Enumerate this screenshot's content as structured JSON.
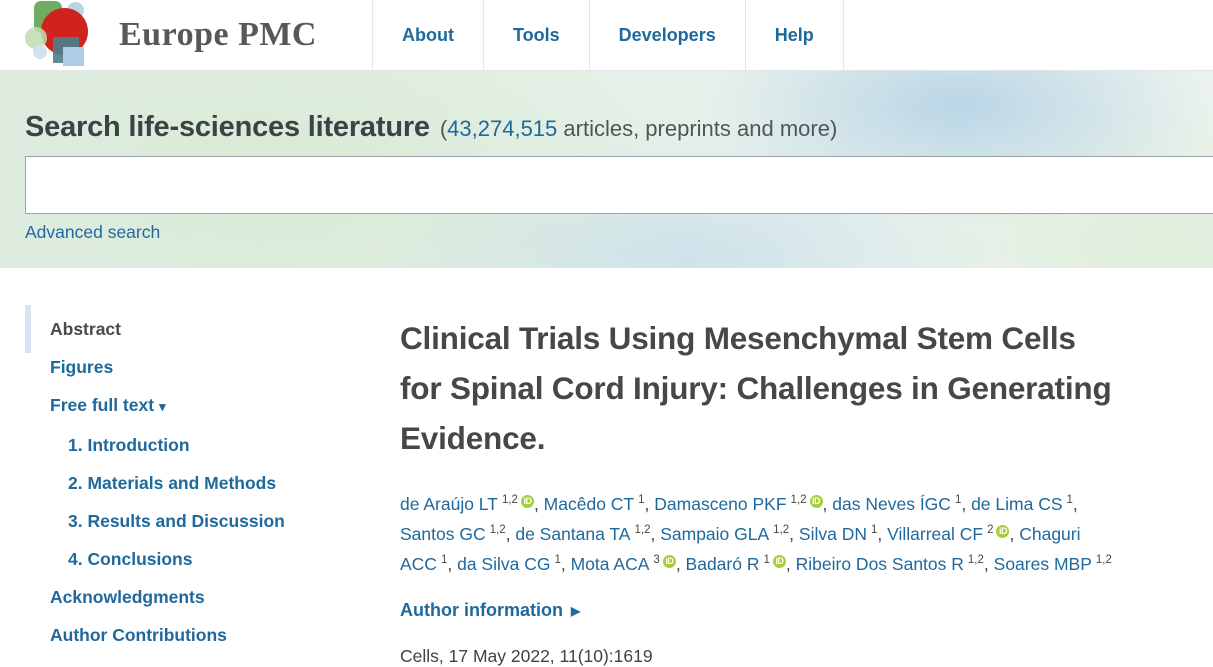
{
  "header": {
    "logo_text": "Europe PMC",
    "nav": [
      {
        "label": "About"
      },
      {
        "label": "Tools"
      },
      {
        "label": "Developers"
      },
      {
        "label": "Help"
      }
    ]
  },
  "search": {
    "heading": "Search life-sciences literature",
    "count_prefix": "(",
    "count_link": "43,274,515",
    "count_suffix": " articles, preprints and more)",
    "input_value": "",
    "input_placeholder": "",
    "advanced_label": "Advanced search"
  },
  "sidebar": {
    "items": [
      {
        "label": "Abstract",
        "active": true,
        "indent": false,
        "dropdown": false
      },
      {
        "label": "Figures",
        "active": false,
        "indent": false,
        "dropdown": false
      },
      {
        "label": "Free full text",
        "active": false,
        "indent": false,
        "dropdown": true
      },
      {
        "label": "1. Introduction",
        "active": false,
        "indent": true,
        "dropdown": false
      },
      {
        "label": "2. Materials and Methods",
        "active": false,
        "indent": true,
        "dropdown": false
      },
      {
        "label": "3. Results and Discussion",
        "active": false,
        "indent": true,
        "dropdown": false
      },
      {
        "label": "4. Conclusions",
        "active": false,
        "indent": true,
        "dropdown": false
      },
      {
        "label": "Acknowledgments",
        "active": false,
        "indent": false,
        "dropdown": false
      },
      {
        "label": "Author Contributions",
        "active": false,
        "indent": false,
        "dropdown": false
      }
    ]
  },
  "article": {
    "title": "Clinical Trials Using Mesenchymal Stem Cells for Spinal Cord Injury: Challenges in Generating Evidence.",
    "authors": [
      {
        "name": "de Araújo LT",
        "sup": "1,2",
        "orcid": true
      },
      {
        "name": "Macêdo CT",
        "sup": "1",
        "orcid": false
      },
      {
        "name": "Damasceno PKF",
        "sup": "1,2",
        "orcid": true
      },
      {
        "name": "das Neves ÍGC",
        "sup": "1",
        "orcid": false
      },
      {
        "name": "de Lima CS",
        "sup": "1",
        "orcid": false
      },
      {
        "name": "Santos GC",
        "sup": "1,2",
        "orcid": false
      },
      {
        "name": "de Santana TA",
        "sup": "1,2",
        "orcid": false
      },
      {
        "name": "Sampaio GLA",
        "sup": "1,2",
        "orcid": false
      },
      {
        "name": "Silva DN",
        "sup": "1",
        "orcid": false
      },
      {
        "name": "Villarreal CF",
        "sup": "2",
        "orcid": true
      },
      {
        "name": "Chaguri ACC",
        "sup": "1",
        "orcid": false
      },
      {
        "name": "da Silva CG",
        "sup": "1",
        "orcid": false
      },
      {
        "name": "Mota ACA",
        "sup": "3",
        "orcid": true
      },
      {
        "name": "Badaró R",
        "sup": "1",
        "orcid": true
      },
      {
        "name": "Ribeiro Dos Santos R",
        "sup": "1,2",
        "orcid": false
      },
      {
        "name": "Soares MBP",
        "sup": "1,2",
        "orcid": false
      }
    ],
    "author_info_label": "Author information",
    "citation": "Cells, 17 May 2022, 11(10):1619"
  },
  "icons": {
    "dropdown_caret": "▾",
    "expand_arrow": "▶",
    "orcid_label": "iD"
  },
  "colors": {
    "link_blue": "#20699c",
    "title_gray": "#474747",
    "orcid_green": "#a6ce39",
    "logo_red": "#d0231c",
    "active_marker_blue": "#d6e5f3"
  }
}
